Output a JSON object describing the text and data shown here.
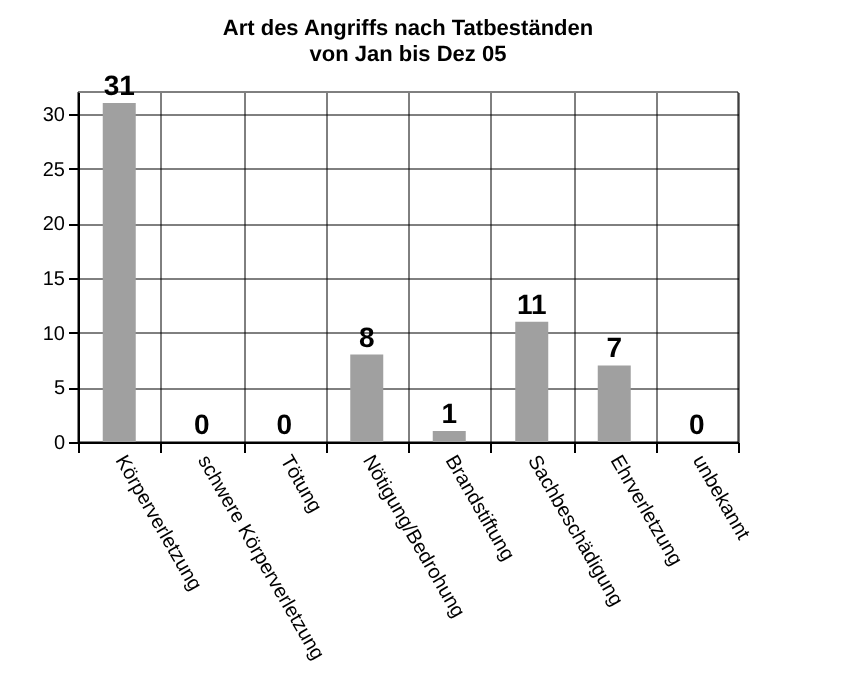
{
  "chart_data": {
    "type": "bar",
    "title": "Art des Angriffs nach Tatbeständen\nvon Jan bis Dez 05",
    "categories": [
      "Körperverletzung",
      "schwere Körperverletzung",
      "Tötung",
      "Nötigung/Bedrohung",
      "Brandstiftung",
      "Sachbeschädigung",
      "Ehrverletzung",
      "unbekannt"
    ],
    "values": [
      31,
      0,
      0,
      8,
      1,
      11,
      7,
      0
    ],
    "color": "#a0a0a0",
    "ylim": [
      0,
      32
    ],
    "yticks": [
      0,
      5,
      10,
      15,
      20,
      25,
      30
    ],
    "grid": true,
    "data_labels": true
  }
}
